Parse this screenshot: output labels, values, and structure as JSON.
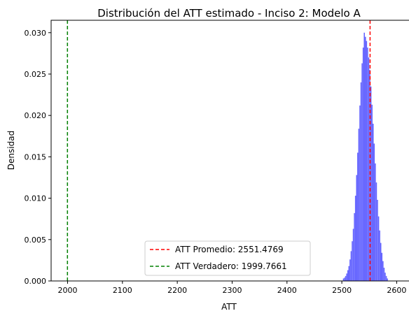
{
  "chart_data": {
    "type": "histogram",
    "title": "Distribución del ATT estimado - Inciso 2: Modelo A",
    "xlabel": "ATT",
    "ylabel": "Densidad",
    "xlim": [
      1970,
      2625
    ],
    "ylim": [
      0,
      0.0315
    ],
    "xticks": [
      2000,
      2100,
      2200,
      2300,
      2400,
      2500,
      2600
    ],
    "yticks": [
      0.0,
      0.005,
      0.01,
      0.015,
      0.02,
      0.025,
      0.03
    ],
    "ytick_labels": [
      "0.000",
      "0.005",
      "0.010",
      "0.015",
      "0.020",
      "0.025",
      "0.030"
    ],
    "bar_color": "#6666ff",
    "bin_width": 2,
    "histogram": {
      "bin_start": 2502,
      "densities": [
        0.0003,
        0.0004,
        0.0006,
        0.0009,
        0.0013,
        0.0018,
        0.0026,
        0.0036,
        0.0048,
        0.0063,
        0.0082,
        0.0103,
        0.0128,
        0.0155,
        0.0184,
        0.0212,
        0.024,
        0.0263,
        0.0282,
        0.03,
        0.0295,
        0.029,
        0.0282,
        0.027,
        0.0255,
        0.0235,
        0.0213,
        0.019,
        0.0166,
        0.0142,
        0.0119,
        0.0098,
        0.0078,
        0.0061,
        0.0046,
        0.0034,
        0.0024,
        0.0016,
        0.001,
        0.0006,
        0.0003
      ]
    },
    "vlines": [
      {
        "x": 2551.4769,
        "color": "#ff0000",
        "style": "dashed",
        "label": "ATT Promedio: 2551.4769"
      },
      {
        "x": 1999.7661,
        "color": "#008000",
        "style": "dashed",
        "label": "ATT Verdadero: 1999.7661"
      }
    ],
    "legend": {
      "location": "lower-center"
    }
  }
}
